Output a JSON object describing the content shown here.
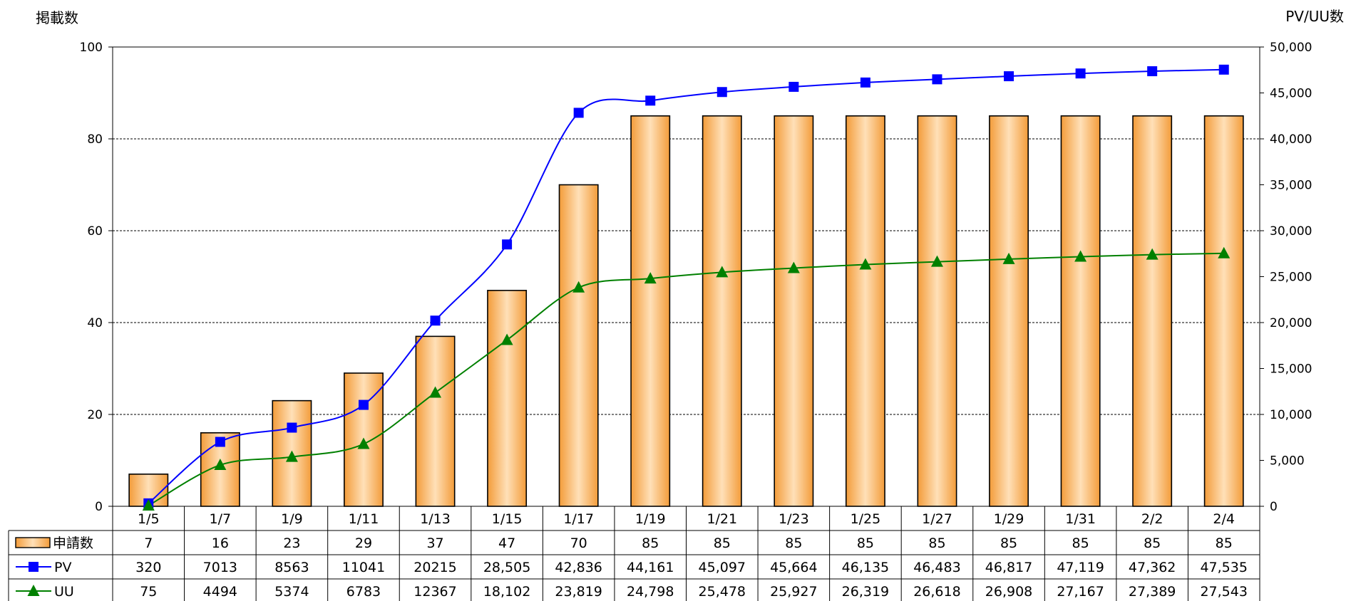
{
  "chart_data": {
    "type": "bar",
    "categories": [
      "1/5",
      "1/7",
      "1/9",
      "1/11",
      "1/13",
      "1/15",
      "1/17",
      "1/19",
      "1/21",
      "1/23",
      "1/25",
      "1/27",
      "1/29",
      "1/31",
      "2/2",
      "2/4"
    ],
    "left_axis": {
      "title": "掲載数",
      "ylim": [
        0,
        100
      ],
      "ticks": [
        0,
        20,
        40,
        60,
        80,
        100
      ],
      "tick_labels": [
        "0",
        "20",
        "40",
        "60",
        "80",
        "100"
      ]
    },
    "right_axis": {
      "title": "PV/UU数",
      "ylim": [
        0,
        50000
      ],
      "ticks": [
        0,
        5000,
        10000,
        15000,
        20000,
        25000,
        30000,
        35000,
        40000,
        45000,
        50000
      ],
      "tick_labels": [
        "0",
        "5,000",
        "10,000",
        "15,000",
        "20,000",
        "25,000",
        "30,000",
        "35,000",
        "40,000",
        "45,000",
        "50,000"
      ]
    },
    "grid": true,
    "legend": "table-left",
    "series": [
      {
        "name": "申請数",
        "type": "bar",
        "axis": "left",
        "color": "#F9A040",
        "values": [
          7,
          16,
          23,
          29,
          37,
          47,
          70,
          85,
          85,
          85,
          85,
          85,
          85,
          85,
          85,
          85
        ],
        "labels": [
          "7",
          "16",
          "23",
          "29",
          "37",
          "47",
          "70",
          "85",
          "85",
          "85",
          "85",
          "85",
          "85",
          "85",
          "85",
          "85"
        ]
      },
      {
        "name": "PV",
        "type": "line",
        "axis": "right",
        "color": "#0000FF",
        "marker": "square",
        "values": [
          320,
          7013,
          8563,
          11041,
          20215,
          28505,
          42836,
          44161,
          45097,
          45664,
          46135,
          46483,
          46817,
          47119,
          47362,
          47535
        ],
        "labels": [
          "320",
          "7013",
          "8563",
          "11041",
          "20215",
          "28,505",
          "42,836",
          "44,161",
          "45,097",
          "45,664",
          "46,135",
          "46,483",
          "46,817",
          "47,119",
          "47,362",
          "47,535"
        ]
      },
      {
        "name": "UU",
        "type": "line",
        "axis": "right",
        "color": "#008000",
        "marker": "triangle",
        "values": [
          75,
          4494,
          5374,
          6783,
          12367,
          18102,
          23819,
          24798,
          25478,
          25927,
          26319,
          26618,
          26908,
          27167,
          27389,
          27543
        ],
        "labels": [
          "75",
          "4494",
          "5374",
          "6783",
          "12367",
          "18,102",
          "23,819",
          "24,798",
          "25,478",
          "25,927",
          "26,319",
          "26,618",
          "26,908",
          "27,167",
          "27,389",
          "27,543"
        ]
      }
    ]
  }
}
